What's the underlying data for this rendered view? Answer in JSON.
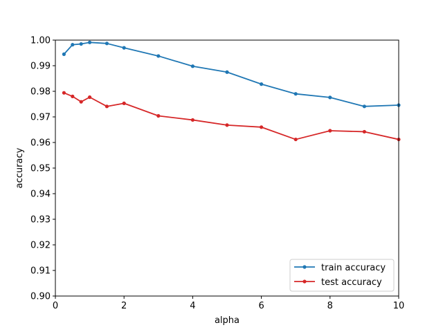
{
  "chart_data": {
    "type": "line",
    "title": "",
    "xlabel": "alpha",
    "ylabel": "accuracy",
    "xlim": [
      0,
      10
    ],
    "ylim": [
      0.9,
      1.0
    ],
    "xticks": [
      0,
      2,
      4,
      6,
      8,
      10
    ],
    "xtick_labels": [
      "0",
      "2",
      "4",
      "6",
      "8",
      "10"
    ],
    "yticks": [
      0.9,
      0.91,
      0.92,
      0.93,
      0.94,
      0.95,
      0.96,
      0.97,
      0.98,
      0.99,
      1.0
    ],
    "ytick_labels": [
      "0.90",
      "0.91",
      "0.92",
      "0.93",
      "0.94",
      "0.95",
      "0.96",
      "0.97",
      "0.98",
      "0.99",
      "1.00"
    ],
    "grid": false,
    "legend_position": "lower right",
    "series": [
      {
        "name": "train accuracy",
        "color": "#1f77b4",
        "marker": "dot",
        "x": [
          0.25,
          0.5,
          0.75,
          1,
          1.5,
          2,
          3,
          4,
          5,
          6,
          7,
          8,
          9,
          10
        ],
        "y": [
          0.9945,
          0.9982,
          0.9985,
          0.9991,
          0.9987,
          0.997,
          0.9938,
          0.9898,
          0.9875,
          0.9828,
          0.979,
          0.9776,
          0.9741,
          0.9746
        ]
      },
      {
        "name": "test accuracy",
        "color": "#d62728",
        "marker": "dot",
        "x": [
          0.25,
          0.5,
          0.75,
          1,
          1.5,
          2,
          3,
          4,
          5,
          6,
          7,
          8,
          9,
          10
        ],
        "y": [
          0.9794,
          0.978,
          0.9759,
          0.9777,
          0.9741,
          0.9753,
          0.9704,
          0.9688,
          0.9668,
          0.966,
          0.9612,
          0.9646,
          0.9642,
          0.9612
        ]
      }
    ]
  }
}
